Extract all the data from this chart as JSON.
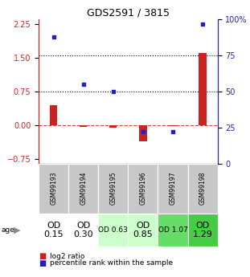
{
  "title": "GDS2591 / 3815",
  "samples": [
    "GSM99193",
    "GSM99194",
    "GSM99195",
    "GSM99196",
    "GSM99197",
    "GSM99198"
  ],
  "log2_ratio": [
    0.45,
    -0.04,
    -0.05,
    -0.35,
    -0.02,
    1.6
  ],
  "percentile_rank_pct": [
    88,
    55,
    50,
    22,
    22,
    97
  ],
  "age_labels": [
    "OD\n0.15",
    "OD\n0.30",
    "OD 0.63",
    "OD\n0.85",
    "OD 1.07",
    "OD\n1.29"
  ],
  "age_fontsize": [
    8,
    8,
    6.5,
    8,
    6.5,
    8
  ],
  "age_bg_colors": [
    "#ffffff",
    "#ffffff",
    "#ccffcc",
    "#ccffcc",
    "#66dd66",
    "#44cc44"
  ],
  "ylim_left": [
    -0.85,
    2.35
  ],
  "ylim_right": [
    0,
    100
  ],
  "yticks_left": [
    -0.75,
    0.0,
    0.75,
    1.5,
    2.25
  ],
  "yticks_right": [
    0,
    25,
    50,
    75,
    100
  ],
  "bar_color_red": "#cc2222",
  "bar_color_blue": "#2222bb",
  "bg_color_plot": "#ffffff",
  "bg_color_sample_row": "#c8c8c8"
}
